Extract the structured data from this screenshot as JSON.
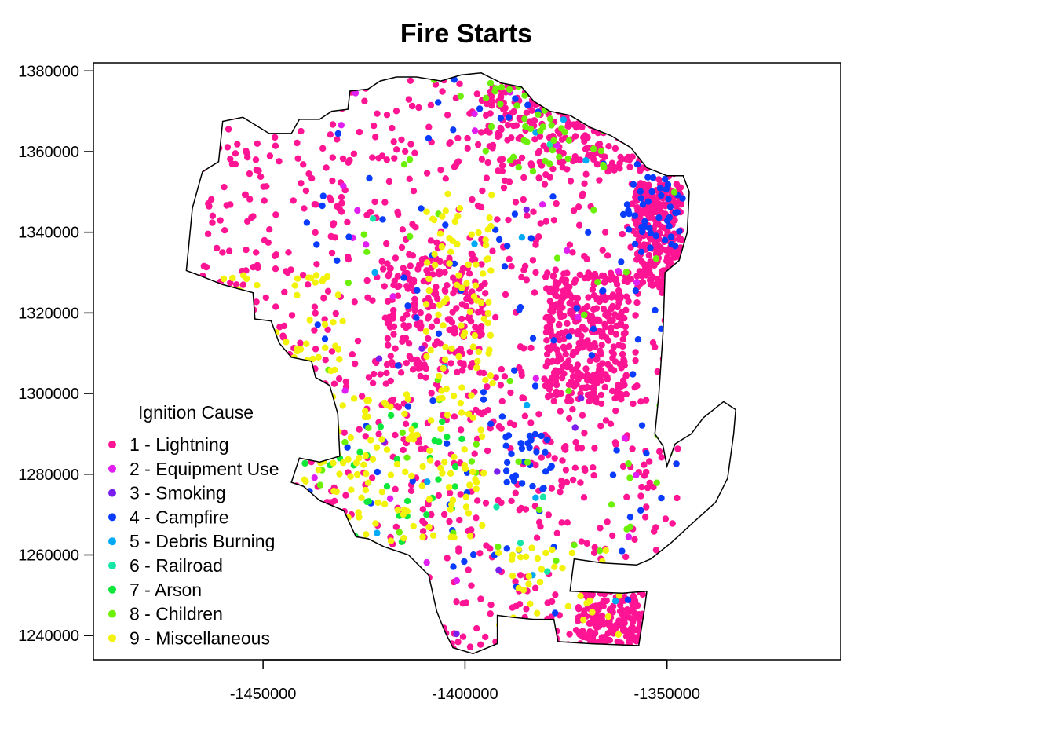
{
  "chart_data": {
    "type": "scatter",
    "title": "Fire Starts",
    "xlabel": "",
    "ylabel": "",
    "xlim": [
      -1492000,
      -1307000
    ],
    "ylim": [
      1234000,
      1382000
    ],
    "x_ticks": [
      -1450000,
      -1400000,
      -1350000
    ],
    "x_tick_labels": [
      "-1450000",
      "-1400000",
      "-1350000"
    ],
    "y_ticks": [
      1240000,
      1260000,
      1280000,
      1300000,
      1320000,
      1340000,
      1360000,
      1380000
    ],
    "y_tick_labels": [
      "1240000",
      "1260000",
      "1280000",
      "1300000",
      "1320000",
      "1340000",
      "1360000",
      "1380000"
    ],
    "grid": false,
    "legend": {
      "title": "Ignition Cause",
      "placement": "bottom-left",
      "entries": [
        {
          "label": "1 -  Lightning",
          "color": "#ff1493"
        },
        {
          "label": "2 -  Equipment Use",
          "color": "#e01ef0"
        },
        {
          "label": "3 -  Smoking",
          "color": "#7a1ef0"
        },
        {
          "label": "4 -  Campfire",
          "color": "#0a3cff"
        },
        {
          "label": "5 -  Debris Burning",
          "color": "#00a9f5"
        },
        {
          "label": "6 -  Railroad",
          "color": "#14e6a8"
        },
        {
          "label": "7 -  Arson",
          "color": "#0ee83a"
        },
        {
          "label": "8 -  Children",
          "color": "#6cf008"
        },
        {
          "label": "9 -  Miscellaneous",
          "color": "#f2f20a"
        }
      ]
    },
    "boundary": [
      [
        -1469000,
        1330500
      ],
      [
        -1467500,
        1346000
      ],
      [
        -1465000,
        1355000
      ],
      [
        -1461000,
        1357500
      ],
      [
        -1460000,
        1367500
      ],
      [
        -1455000,
        1368500
      ],
      [
        -1448500,
        1364500
      ],
      [
        -1443000,
        1364500
      ],
      [
        -1441000,
        1368000
      ],
      [
        -1436000,
        1368000
      ],
      [
        -1433000,
        1370000
      ],
      [
        -1429000,
        1370500
      ],
      [
        -1428500,
        1375000
      ],
      [
        -1424000,
        1375500
      ],
      [
        -1421000,
        1377500
      ],
      [
        -1417000,
        1378500
      ],
      [
        -1412000,
        1378500
      ],
      [
        -1406000,
        1377500
      ],
      [
        -1401000,
        1379000
      ],
      [
        -1396000,
        1379500
      ],
      [
        -1391000,
        1377000
      ],
      [
        -1386000,
        1376000
      ],
      [
        -1383000,
        1372500
      ],
      [
        -1379000,
        1370000
      ],
      [
        -1374000,
        1369000
      ],
      [
        -1369000,
        1366000
      ],
      [
        -1364000,
        1364000
      ],
      [
        -1359000,
        1361000
      ],
      [
        -1355000,
        1356000
      ],
      [
        -1350000,
        1354000
      ],
      [
        -1346000,
        1354000
      ],
      [
        -1344500,
        1350000
      ],
      [
        -1345000,
        1340000
      ],
      [
        -1347000,
        1333000
      ],
      [
        -1350500,
        1330000
      ],
      [
        -1351000,
        1315000
      ],
      [
        -1352000,
        1300000
      ],
      [
        -1353000,
        1290000
      ],
      [
        -1351000,
        1287000
      ],
      [
        -1350000,
        1282000
      ],
      [
        -1348000,
        1287500
      ],
      [
        -1344000,
        1290000
      ],
      [
        -1341000,
        1294000
      ],
      [
        -1336000,
        1298000
      ],
      [
        -1333000,
        1296000
      ],
      [
        -1333500,
        1290000
      ],
      [
        -1335000,
        1279000
      ],
      [
        -1338000,
        1273000
      ],
      [
        -1343000,
        1268500
      ],
      [
        -1349000,
        1263000
      ],
      [
        -1354000,
        1259000
      ],
      [
        -1357500,
        1257500
      ],
      [
        -1366000,
        1258000
      ],
      [
        -1373000,
        1259000
      ],
      [
        -1374000,
        1251000
      ],
      [
        -1361000,
        1250500
      ],
      [
        -1355000,
        1251000
      ],
      [
        -1355500,
        1247000
      ],
      [
        -1357000,
        1237500
      ],
      [
        -1369000,
        1238000
      ],
      [
        -1377000,
        1238500
      ],
      [
        -1378000,
        1244000
      ],
      [
        -1383000,
        1244000
      ],
      [
        -1388000,
        1244500
      ],
      [
        -1392000,
        1245000
      ],
      [
        -1392000,
        1238000
      ],
      [
        -1398000,
        1235500
      ],
      [
        -1403000,
        1237000
      ],
      [
        -1405000,
        1241000
      ],
      [
        -1407000,
        1246000
      ],
      [
        -1409000,
        1255000
      ],
      [
        -1412000,
        1258000
      ],
      [
        -1414000,
        1260000
      ],
      [
        -1420000,
        1262000
      ],
      [
        -1424000,
        1264000
      ],
      [
        -1427000,
        1264500
      ],
      [
        -1430000,
        1271000
      ],
      [
        -1436000,
        1273500
      ],
      [
        -1440000,
        1277000
      ],
      [
        -1443000,
        1278000
      ],
      [
        -1441000,
        1284000
      ],
      [
        -1436000,
        1283000
      ],
      [
        -1431000,
        1284500
      ],
      [
        -1431500,
        1295000
      ],
      [
        -1433500,
        1302000
      ],
      [
        -1437000,
        1304000
      ],
      [
        -1438000,
        1308000
      ],
      [
        -1443000,
        1309000
      ],
      [
        -1446000,
        1312500
      ],
      [
        -1448000,
        1318000
      ],
      [
        -1452000,
        1318500
      ],
      [
        -1452500,
        1325000
      ],
      [
        -1460000,
        1327000
      ],
      [
        -1465000,
        1329000
      ],
      [
        -1469000,
        1330500
      ]
    ],
    "clusters": [
      {
        "cause": 1,
        "count": 1100,
        "x": [
          -1468000,
          -1346000
        ],
        "y": [
          1236000,
          1378000
        ]
      },
      {
        "cause": 1,
        "count": 320,
        "x": [
          -1395000,
          -1345000
        ],
        "y": [
          1355000,
          1378000
        ]
      },
      {
        "cause": 1,
        "count": 260,
        "x": [
          -1358000,
          -1346000
        ],
        "y": [
          1326000,
          1352000
        ]
      },
      {
        "cause": 1,
        "count": 340,
        "x": [
          -1380000,
          -1360000
        ],
        "y": [
          1298000,
          1330000
        ]
      },
      {
        "cause": 1,
        "count": 160,
        "x": [
          -1372000,
          -1356000
        ],
        "y": [
          1238000,
          1251000
        ]
      },
      {
        "cause": 1,
        "count": 180,
        "x": [
          -1420000,
          -1395000
        ],
        "y": [
          1305000,
          1335000
        ]
      },
      {
        "cause": 2,
        "count": 30,
        "x": [
          -1440000,
          -1346000
        ],
        "y": [
          1240000,
          1375000
        ]
      },
      {
        "cause": 3,
        "count": 12,
        "x": [
          -1440000,
          -1346000
        ],
        "y": [
          1240000,
          1375000
        ]
      },
      {
        "cause": 4,
        "count": 120,
        "x": [
          -1440000,
          -1346000
        ],
        "y": [
          1245000,
          1378000
        ]
      },
      {
        "cause": 4,
        "count": 40,
        "x": [
          -1360000,
          -1346000
        ],
        "y": [
          1335000,
          1355000
        ]
      },
      {
        "cause": 4,
        "count": 30,
        "x": [
          -1390000,
          -1378000
        ],
        "y": [
          1276000,
          1290000
        ]
      },
      {
        "cause": 5,
        "count": 15,
        "x": [
          -1440000,
          -1346000
        ],
        "y": [
          1245000,
          1378000
        ]
      },
      {
        "cause": 6,
        "count": 8,
        "x": [
          -1440000,
          -1346000
        ],
        "y": [
          1245000,
          1378000
        ]
      },
      {
        "cause": 7,
        "count": 40,
        "x": [
          -1440000,
          -1400000
        ],
        "y": [
          1262000,
          1295000
        ]
      },
      {
        "cause": 8,
        "count": 60,
        "x": [
          -1440000,
          -1346000
        ],
        "y": [
          1245000,
          1378000
        ]
      },
      {
        "cause": 8,
        "count": 40,
        "x": [
          -1395000,
          -1365000
        ],
        "y": [
          1355000,
          1377000
        ]
      },
      {
        "cause": 9,
        "count": 140,
        "x": [
          -1440000,
          -1395000
        ],
        "y": [
          1262000,
          1300000
        ]
      },
      {
        "cause": 9,
        "count": 80,
        "x": [
          -1410000,
          -1393000
        ],
        "y": [
          1300000,
          1350000
        ]
      },
      {
        "cause": 9,
        "count": 60,
        "x": [
          -1460000,
          -1430000
        ],
        "y": [
          1305000,
          1330000
        ]
      },
      {
        "cause": 9,
        "count": 40,
        "x": [
          -1392000,
          -1360000
        ],
        "y": [
          1240000,
          1262000
        ]
      }
    ]
  }
}
